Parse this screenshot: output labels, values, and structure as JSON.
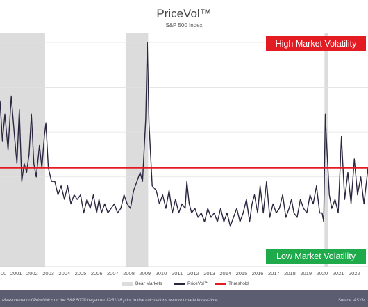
{
  "title": "PriceVol™",
  "subtitle": "S&P 500 Index",
  "labels": {
    "high": "High Market Volatility",
    "low": "Low Market Volatility"
  },
  "legend": {
    "bear": "Bear Markets",
    "pricevol": "PriceVol™",
    "threshold": "Threshold"
  },
  "footnote": "Measurement of PriceVol™ on the S&P 500® began on 12/31/16 prior to that calculations were not made in real-time.",
  "source": "Source: ASYM",
  "colors": {
    "line": "#2c2540",
    "threshold": "#e31b23",
    "bear": "#dcdcdc",
    "grid": "#e2e2e2",
    "high": "#e31b23",
    "low": "#1fab4c"
  },
  "chart_data": {
    "type": "line",
    "title": "PriceVol™",
    "subtitle": "S&P 500 Index",
    "xlabel": "",
    "ylabel": "",
    "xlim": [
      2000,
      2022.85
    ],
    "ylim": [
      0,
      5.2
    ],
    "grid": true,
    "x_tick_labels": [
      "00",
      "2001",
      "2002",
      "2003",
      "2004",
      "2005",
      "2006",
      "2007",
      "2008",
      "2009",
      "2010",
      "2011",
      "2012",
      "2013",
      "2014",
      "2015",
      "2016",
      "2017",
      "2018",
      "2019",
      "2020",
      "2021",
      "2022"
    ],
    "threshold": 2.2,
    "bear_markets": [
      [
        2000.0,
        2002.8
      ],
      [
        2007.8,
        2009.2
      ],
      [
        2020.15,
        2020.35
      ]
    ],
    "series": [
      {
        "name": "PriceVol™",
        "x": [
          2000.0,
          2000.15,
          2000.3,
          2000.5,
          2000.7,
          2000.9,
          2001.05,
          2001.2,
          2001.35,
          2001.5,
          2001.65,
          2001.8,
          2001.95,
          2002.1,
          2002.25,
          2002.45,
          2002.6,
          2002.75,
          2002.85,
          2003.0,
          2003.2,
          2003.4,
          2003.6,
          2003.8,
          2004.0,
          2004.2,
          2004.4,
          2004.6,
          2004.8,
          2005.0,
          2005.2,
          2005.4,
          2005.6,
          2005.8,
          2006.0,
          2006.15,
          2006.3,
          2006.5,
          2006.7,
          2006.9,
          2007.1,
          2007.3,
          2007.5,
          2007.7,
          2007.9,
          2008.1,
          2008.3,
          2008.5,
          2008.7,
          2008.85,
          2008.95,
          2009.05,
          2009.15,
          2009.25,
          2009.45,
          2009.7,
          2009.9,
          2010.1,
          2010.3,
          2010.5,
          2010.7,
          2010.9,
          2011.1,
          2011.3,
          2011.5,
          2011.6,
          2011.75,
          2011.9,
          2012.1,
          2012.3,
          2012.5,
          2012.7,
          2012.9,
          2013.1,
          2013.3,
          2013.5,
          2013.7,
          2013.9,
          2014.1,
          2014.3,
          2014.5,
          2014.7,
          2014.9,
          2015.1,
          2015.3,
          2015.5,
          2015.65,
          2015.8,
          2016.0,
          2016.15,
          2016.35,
          2016.55,
          2016.75,
          2016.95,
          2017.15,
          2017.35,
          2017.55,
          2017.75,
          2017.95,
          2018.1,
          2018.25,
          2018.45,
          2018.65,
          2018.85,
          2019.05,
          2019.25,
          2019.45,
          2019.65,
          2019.85,
          2020.0,
          2020.1,
          2020.2,
          2020.3,
          2020.45,
          2020.6,
          2020.8,
          2021.0,
          2021.2,
          2021.4,
          2021.6,
          2021.8,
          2022.0,
          2022.2,
          2022.4,
          2022.6,
          2022.85
        ],
        "values": [
          3.7,
          2.8,
          3.4,
          2.6,
          3.8,
          2.9,
          2.3,
          3.5,
          1.9,
          2.3,
          2.1,
          2.5,
          3.4,
          2.3,
          2.0,
          2.7,
          2.2,
          2.9,
          3.2,
          2.2,
          1.9,
          1.9,
          1.6,
          1.8,
          1.5,
          1.8,
          1.4,
          1.6,
          1.5,
          1.6,
          1.2,
          1.5,
          1.3,
          1.6,
          1.2,
          1.5,
          1.2,
          1.4,
          1.2,
          1.3,
          1.4,
          1.2,
          1.3,
          1.6,
          1.4,
          1.3,
          1.7,
          1.9,
          2.1,
          1.9,
          2.6,
          3.3,
          5.0,
          3.2,
          1.8,
          1.7,
          1.4,
          1.6,
          1.3,
          1.7,
          1.2,
          1.5,
          1.2,
          1.4,
          1.3,
          1.9,
          1.4,
          1.2,
          1.3,
          1.1,
          1.2,
          1.0,
          1.3,
          1.1,
          1.2,
          1.0,
          1.3,
          1.0,
          1.2,
          0.9,
          1.1,
          1.3,
          1.0,
          1.2,
          1.5,
          1.0,
          1.4,
          1.6,
          1.2,
          1.8,
          1.2,
          1.9,
          1.1,
          1.4,
          1.2,
          1.3,
          1.6,
          1.1,
          1.3,
          1.5,
          1.2,
          1.1,
          1.5,
          1.3,
          1.2,
          1.6,
          1.4,
          1.8,
          1.2,
          1.2,
          1.0,
          3.4,
          2.6,
          1.6,
          1.3,
          1.5,
          1.2,
          2.9,
          1.5,
          2.1,
          1.4,
          2.4,
          1.6,
          2.0,
          1.4,
          2.2
        ]
      }
    ]
  }
}
